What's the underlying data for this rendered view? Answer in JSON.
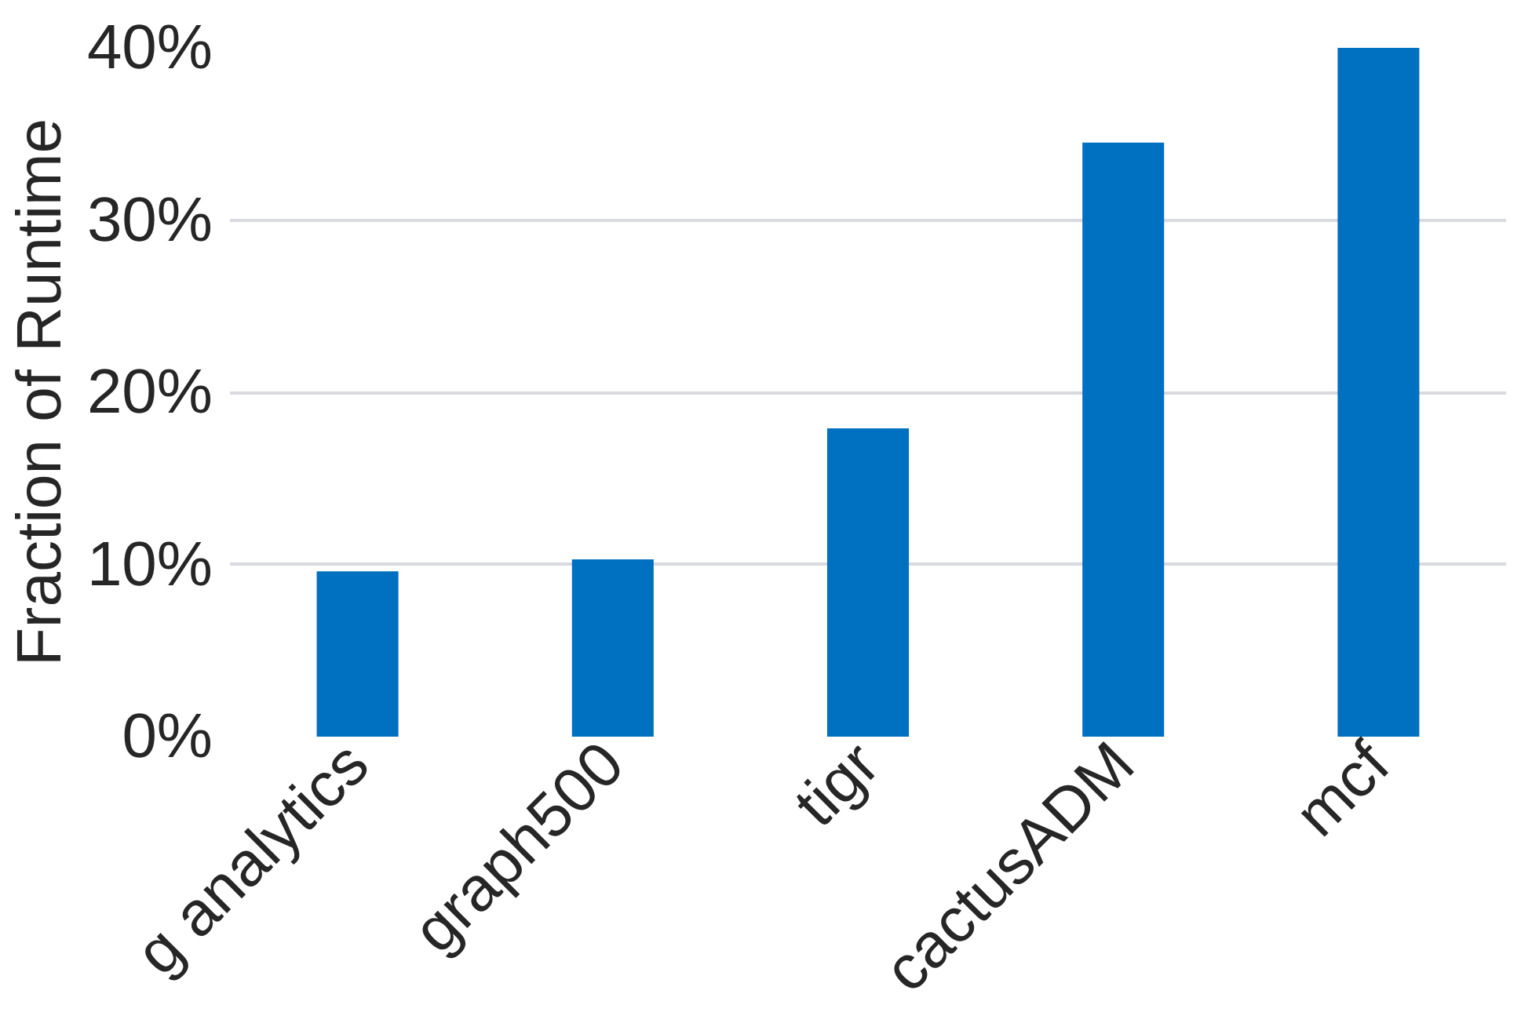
{
  "chart_data": {
    "type": "bar",
    "ylabel": "Fraction of Runtime",
    "categories": [
      "g analytics",
      "graph500",
      "tigr",
      "cactusADM",
      "mcf"
    ],
    "values": [
      9.6,
      10.3,
      17.9,
      34.5,
      40
    ],
    "color": "#0070c0",
    "ylim": [
      0,
      40
    ],
    "yticks": [
      {
        "value": 0,
        "label": "0%"
      },
      {
        "value": 10,
        "label": "10%"
      },
      {
        "value": 20,
        "label": "20%"
      },
      {
        "value": 30,
        "label": "30%"
      },
      {
        "value": 40,
        "label": "40%"
      }
    ],
    "grid": "y"
  }
}
